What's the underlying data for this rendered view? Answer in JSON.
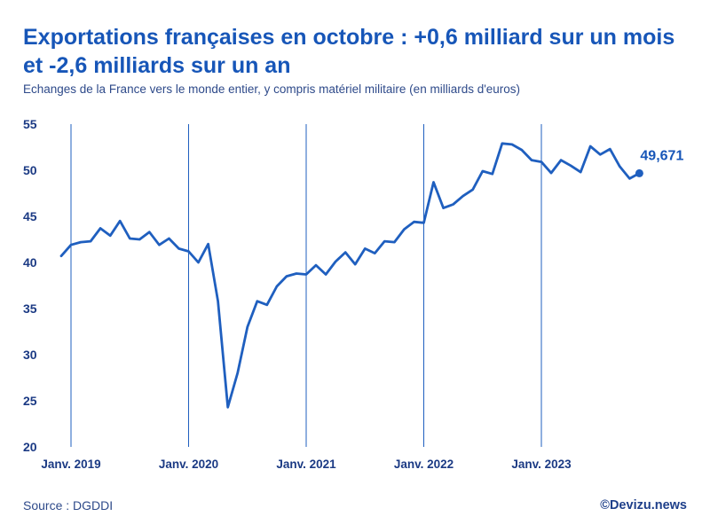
{
  "title": "Exportations françaises en octobre : +0,6 milliard sur un mois et -2,6 milliards sur un an",
  "subtitle": "Echanges de la France vers le monde entier, y compris matériel militaire (en milliards d'euros)",
  "source": "Source : DGDDI",
  "brand": "©Devizu.news",
  "colors": {
    "title": "#1756b8",
    "line": "#1f5fbf",
    "axis": "#1b3a84"
  },
  "chart_data": {
    "type": "line",
    "title": "Exportations françaises en octobre : +0,6 milliard sur un mois et -2,6 milliards sur un an",
    "ylabel": "milliards d'euros",
    "xlabel": "",
    "ylim": [
      20,
      55
    ],
    "yticks": [
      20,
      25,
      30,
      35,
      40,
      45,
      50,
      55
    ],
    "x_start_month_index": -1,
    "xticks": [
      {
        "index": 0,
        "label": "Janv. 2019"
      },
      {
        "index": 12,
        "label": "Janv. 2020"
      },
      {
        "index": 24,
        "label": "Janv. 2021"
      },
      {
        "index": 36,
        "label": "Janv. 2022"
      },
      {
        "index": 48,
        "label": "Janv. 2023"
      }
    ],
    "series": [
      {
        "name": "Exportations",
        "values": [
          40.7,
          41.9,
          42.2,
          42.3,
          43.7,
          42.9,
          44.5,
          42.6,
          42.5,
          43.3,
          41.9,
          42.6,
          41.5,
          41.2,
          40.0,
          42.0,
          35.8,
          24.3,
          28.0,
          33.0,
          35.8,
          35.4,
          37.4,
          38.5,
          38.8,
          38.7,
          39.7,
          38.7,
          40.1,
          41.1,
          39.8,
          41.5,
          41.0,
          42.3,
          42.2,
          43.6,
          44.4,
          44.3,
          48.7,
          45.9,
          46.3,
          47.2,
          47.9,
          49.9,
          49.6,
          52.9,
          52.8,
          52.2,
          51.1,
          50.9,
          49.7,
          51.1,
          50.5,
          49.8,
          52.6,
          51.7,
          52.3,
          50.4,
          49.1,
          49.671
        ]
      }
    ],
    "last_point_label": "49,671"
  }
}
